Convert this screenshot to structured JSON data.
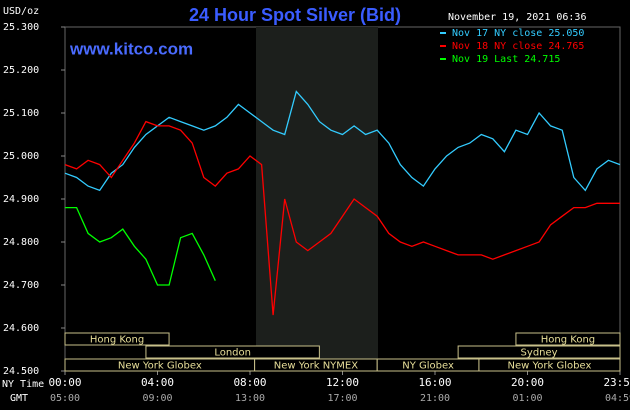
{
  "chart_data": {
    "type": "line",
    "title": "24 Hour Spot Silver (Bid)",
    "y_label": "USD/oz",
    "timestamp": "November 19, 2021 06:36",
    "website": "www.kitco.com",
    "x_label": "NY Time",
    "x2_label": "GMT",
    "xlim": [
      0,
      24
    ],
    "xticks": [
      {
        "value": 0,
        "label": "00:00"
      },
      {
        "value": 4,
        "label": "04:00"
      },
      {
        "value": 8,
        "label": "08:00"
      },
      {
        "value": 12,
        "label": "12:00"
      },
      {
        "value": 16,
        "label": "16:00"
      },
      {
        "value": 20,
        "label": "20:00"
      },
      {
        "value": 24,
        "label": "23:59"
      }
    ],
    "gmt_labels": [
      "05:00",
      "09:00",
      "13:00",
      "17:00",
      "21:00",
      "01:00",
      "04:59"
    ],
    "ylim": [
      24.5,
      25.3
    ],
    "yticks": [
      {
        "value": 24.5,
        "label": "24.500"
      },
      {
        "value": 24.6,
        "label": "24.600"
      },
      {
        "value": 24.7,
        "label": "24.700"
      },
      {
        "value": 24.8,
        "label": "24.800"
      },
      {
        "value": 24.9,
        "label": "24.900"
      },
      {
        "value": 25.0,
        "label": "25.000"
      },
      {
        "value": 25.1,
        "label": "25.100"
      },
      {
        "value": 25.2,
        "label": "25.200"
      },
      {
        "value": 25.3,
        "label": "25.300"
      }
    ],
    "sessions": [
      "Hong Kong",
      "Hong Kong",
      "London",
      "Sydney",
      "New York Globex",
      "New York NYMEX",
      "NY Globex",
      "New York Globex"
    ],
    "x": [
      0,
      0.5,
      1,
      1.5,
      2,
      2.5,
      3,
      3.5,
      4,
      4.5,
      5,
      5.5,
      6,
      6.5,
      7,
      7.5,
      8,
      8.5,
      9,
      9.5,
      10,
      10.5,
      11,
      11.5,
      12,
      12.5,
      13,
      13.5,
      14,
      14.5,
      15,
      15.5,
      16,
      16.5,
      17,
      17.5,
      18,
      18.5,
      19,
      19.5,
      20,
      20.5,
      21,
      21.5,
      22,
      22.5,
      23,
      23.5,
      24
    ],
    "series": [
      {
        "name": "Nov 17 NY close 25.050",
        "color": "#33ccff",
        "values": [
          24.96,
          24.95,
          24.93,
          24.92,
          24.96,
          24.98,
          25.02,
          25.05,
          25.07,
          25.09,
          25.08,
          25.07,
          25.06,
          25.07,
          25.09,
          25.12,
          25.1,
          25.08,
          25.06,
          25.05,
          25.15,
          25.12,
          25.08,
          25.06,
          25.05,
          25.07,
          25.05,
          25.06,
          25.03,
          24.98,
          24.95,
          24.93,
          24.97,
          25.0,
          25.02,
          25.03,
          25.05,
          25.04,
          25.01,
          25.06,
          25.05,
          25.1,
          25.07,
          25.06,
          24.95,
          24.92,
          24.97,
          24.99,
          24.98
        ]
      },
      {
        "name": "Nov 18 NY close 24.765",
        "color": "#ff0000",
        "values": [
          24.98,
          24.97,
          24.99,
          24.98,
          24.95,
          24.99,
          25.03,
          25.08,
          25.07,
          25.07,
          25.06,
          25.03,
          24.95,
          24.93,
          24.96,
          24.97,
          25.0,
          24.98,
          24.63,
          24.9,
          24.8,
          24.78,
          24.8,
          24.82,
          24.86,
          24.9,
          24.88,
          24.86,
          24.82,
          24.8,
          24.79,
          24.8,
          24.79,
          24.78,
          24.77,
          24.77,
          24.77,
          24.76,
          24.77,
          24.78,
          24.79,
          24.8,
          24.84,
          24.86,
          24.88,
          24.88,
          24.89,
          24.89,
          24.89
        ]
      },
      {
        "name": "Nov 19 Last 24.715",
        "color": "#00ff00",
        "values": [
          24.88,
          24.88,
          24.82,
          24.8,
          24.81,
          24.83,
          24.79,
          24.76,
          24.7,
          24.7,
          24.81,
          24.82,
          24.77,
          24.71,
          null,
          null,
          null,
          null,
          null,
          null,
          null,
          null,
          null,
          null,
          null,
          null,
          null,
          null,
          null,
          null,
          null,
          null,
          null,
          null,
          null,
          null,
          null,
          null,
          null,
          null,
          null,
          null,
          null,
          null,
          null,
          null,
          null,
          null,
          null
        ]
      }
    ]
  }
}
